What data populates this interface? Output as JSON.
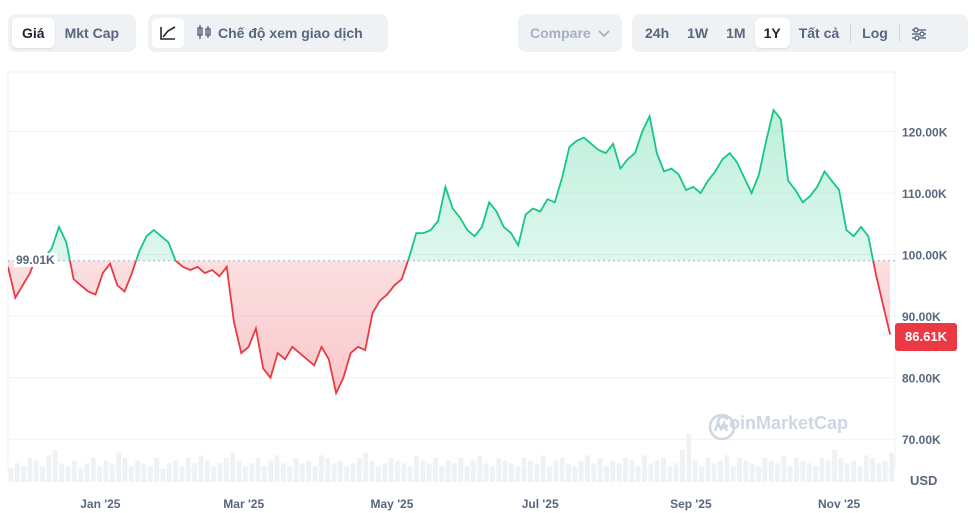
{
  "toolbar": {
    "type_tabs": [
      {
        "label": "Giá",
        "active": true
      },
      {
        "label": "Mkt Cap",
        "active": false
      }
    ],
    "line_icon": "line-chart-icon",
    "trade_icon": "candlestick-icon",
    "trade_mode_label": "Chế độ xem giao dịch",
    "compare_label": "Compare",
    "ranges": [
      {
        "label": "24h",
        "active": false
      },
      {
        "label": "1W",
        "active": false
      },
      {
        "label": "1M",
        "active": false
      },
      {
        "label": "1Y",
        "active": true
      },
      {
        "label": "Tất cả",
        "active": false
      }
    ],
    "log_label": "Log",
    "settings_icon": "sliders-icon"
  },
  "chart_data": {
    "type": "area",
    "reference_value": 99.01,
    "reference_label": "99.01K",
    "current_value": 86.61,
    "current_label": "86.61K",
    "y_unit_label": "USD",
    "ylim": [
      65,
      130
    ],
    "y_ticks": [
      {
        "value": 120,
        "label": "120.00K"
      },
      {
        "value": 110,
        "label": "110.00K"
      },
      {
        "value": 100,
        "label": "100.00K"
      },
      {
        "value": 90,
        "label": "90.00K"
      },
      {
        "value": 80,
        "label": "80.00K"
      },
      {
        "value": 70,
        "label": "70.00K"
      }
    ],
    "x_ticks": [
      {
        "date": "2025-01-01",
        "label": "Jan '25"
      },
      {
        "date": "2025-03-01",
        "label": "Mar '25"
      },
      {
        "date": "2025-05-01",
        "label": "May '25"
      },
      {
        "date": "2025-07-01",
        "label": "Jul '25"
      },
      {
        "date": "2025-09-01",
        "label": "Sep '25"
      },
      {
        "date": "2025-11-01",
        "label": "Nov '25"
      }
    ],
    "xlim": [
      "2024-11-24",
      "2025-11-24"
    ],
    "up_color": "#16c784",
    "down_color": "#ea3943",
    "series": [
      {
        "x": [
          "2024-11-24",
          "2024-11-27",
          "2024-11-30",
          "2024-12-03",
          "2024-12-06",
          "2024-12-09",
          "2024-12-12",
          "2024-12-15",
          "2024-12-18",
          "2024-12-21",
          "2024-12-24",
          "2024-12-27",
          "2024-12-30",
          "2025-01-02",
          "2025-01-05",
          "2025-01-08",
          "2025-01-11",
          "2025-01-14",
          "2025-01-17",
          "2025-01-20",
          "2025-01-23",
          "2025-01-26",
          "2025-01-29",
          "2025-02-01",
          "2025-02-04",
          "2025-02-07",
          "2025-02-10",
          "2025-02-13",
          "2025-02-16",
          "2025-02-19",
          "2025-02-22",
          "2025-02-25",
          "2025-02-28",
          "2025-03-03",
          "2025-03-06",
          "2025-03-09",
          "2025-03-12",
          "2025-03-15",
          "2025-03-18",
          "2025-03-21",
          "2025-03-24",
          "2025-03-27",
          "2025-03-30",
          "2025-04-02",
          "2025-04-05",
          "2025-04-08",
          "2025-04-11",
          "2025-04-14",
          "2025-04-17",
          "2025-04-20",
          "2025-04-23",
          "2025-04-26",
          "2025-04-29",
          "2025-05-02",
          "2025-05-05",
          "2025-05-08",
          "2025-05-11",
          "2025-05-14",
          "2025-05-17",
          "2025-05-20",
          "2025-05-23",
          "2025-05-26",
          "2025-05-29",
          "2025-06-01",
          "2025-06-04",
          "2025-06-07",
          "2025-06-10",
          "2025-06-13",
          "2025-06-16",
          "2025-06-19",
          "2025-06-22",
          "2025-06-25",
          "2025-06-28",
          "2025-07-01",
          "2025-07-04",
          "2025-07-07",
          "2025-07-10",
          "2025-07-13",
          "2025-07-16",
          "2025-07-19",
          "2025-07-22",
          "2025-07-25",
          "2025-07-28",
          "2025-07-31",
          "2025-08-03",
          "2025-08-06",
          "2025-08-09",
          "2025-08-12",
          "2025-08-15",
          "2025-08-18",
          "2025-08-21",
          "2025-08-24",
          "2025-08-27",
          "2025-08-30",
          "2025-09-02",
          "2025-09-05",
          "2025-09-08",
          "2025-09-11",
          "2025-09-14",
          "2025-09-17",
          "2025-09-20",
          "2025-09-23",
          "2025-09-26",
          "2025-09-29",
          "2025-10-02",
          "2025-10-05",
          "2025-10-08",
          "2025-10-11",
          "2025-10-14",
          "2025-10-17",
          "2025-10-20",
          "2025-10-23",
          "2025-10-26",
          "2025-10-29",
          "2025-11-01",
          "2025-11-04",
          "2025-11-07",
          "2025-11-10",
          "2025-11-13",
          "2025-11-16",
          "2025-11-19",
          "2025-11-22"
        ],
        "y": [
          98.0,
          93.0,
          95.0,
          97.0,
          100.0,
          99.5,
          101.0,
          104.5,
          102.0,
          96.0,
          95.0,
          94.0,
          93.5,
          97.0,
          98.5,
          95.0,
          94.0,
          97.0,
          100.5,
          103.0,
          104.0,
          103.0,
          102.0,
          99.0,
          98.0,
          97.5,
          98.0,
          97.0,
          97.5,
          96.5,
          98.0,
          89.0,
          84.0,
          85.0,
          88.0,
          81.5,
          80.0,
          84.0,
          83.0,
          85.0,
          84.0,
          83.0,
          82.0,
          85.0,
          83.0,
          77.5,
          80.0,
          84.0,
          85.0,
          84.5,
          90.5,
          92.5,
          93.5,
          95.0,
          96.0,
          99.5,
          103.5,
          103.5,
          104.0,
          105.5,
          111.0,
          107.5,
          106.0,
          104.0,
          103.0,
          104.5,
          108.5,
          107.0,
          104.5,
          103.5,
          101.5,
          106.5,
          107.5,
          107.0,
          109.0,
          108.5,
          112.5,
          117.5,
          118.5,
          119.0,
          118.0,
          117.0,
          116.5,
          118.0,
          114.0,
          115.5,
          116.5,
          120.0,
          122.5,
          116.5,
          113.5,
          114.0,
          113.0,
          110.5,
          111.0,
          110.0,
          112.0,
          113.5,
          115.5,
          116.5,
          115.0,
          112.5,
          110.0,
          113.0,
          118.5,
          123.5,
          122.0,
          112.0,
          110.5,
          108.5,
          109.5,
          111.0,
          113.5,
          112.0,
          110.5,
          104.0,
          103.0,
          104.5,
          103.0,
          97.0,
          92.0,
          87.0
        ]
      }
    ],
    "volume": [
      5,
      7,
      6,
      9,
      8,
      6,
      10,
      12,
      7,
      6,
      8,
      5,
      7,
      9,
      6,
      8,
      7,
      11,
      9,
      6,
      8,
      7,
      6,
      9,
      5,
      7,
      8,
      6,
      9,
      7,
      10,
      8,
      6,
      7,
      9,
      11,
      8,
      6,
      7,
      9,
      6,
      8,
      10,
      7,
      6,
      9,
      7,
      8,
      6,
      10,
      9,
      7,
      8,
      6,
      7,
      9,
      11,
      8,
      6,
      7,
      9,
      8,
      7,
      6,
      10,
      8,
      7,
      9,
      6,
      8,
      7,
      9,
      6,
      8,
      10,
      7,
      6,
      9,
      8,
      7,
      6,
      9,
      8,
      7,
      10,
      6,
      8,
      9,
      7,
      6,
      8,
      10,
      7,
      9,
      6,
      8,
      7,
      9,
      8,
      6,
      10,
      7,
      8,
      9,
      6,
      7,
      12,
      18,
      8,
      6,
      9,
      7,
      8,
      10,
      6,
      9,
      8,
      7,
      6,
      9,
      8,
      7,
      10,
      6,
      9,
      8,
      7,
      6,
      9,
      8,
      12,
      9,
      7,
      8,
      6,
      10,
      9,
      7,
      8,
      11
    ]
  },
  "watermark": "CoinMarketCap"
}
